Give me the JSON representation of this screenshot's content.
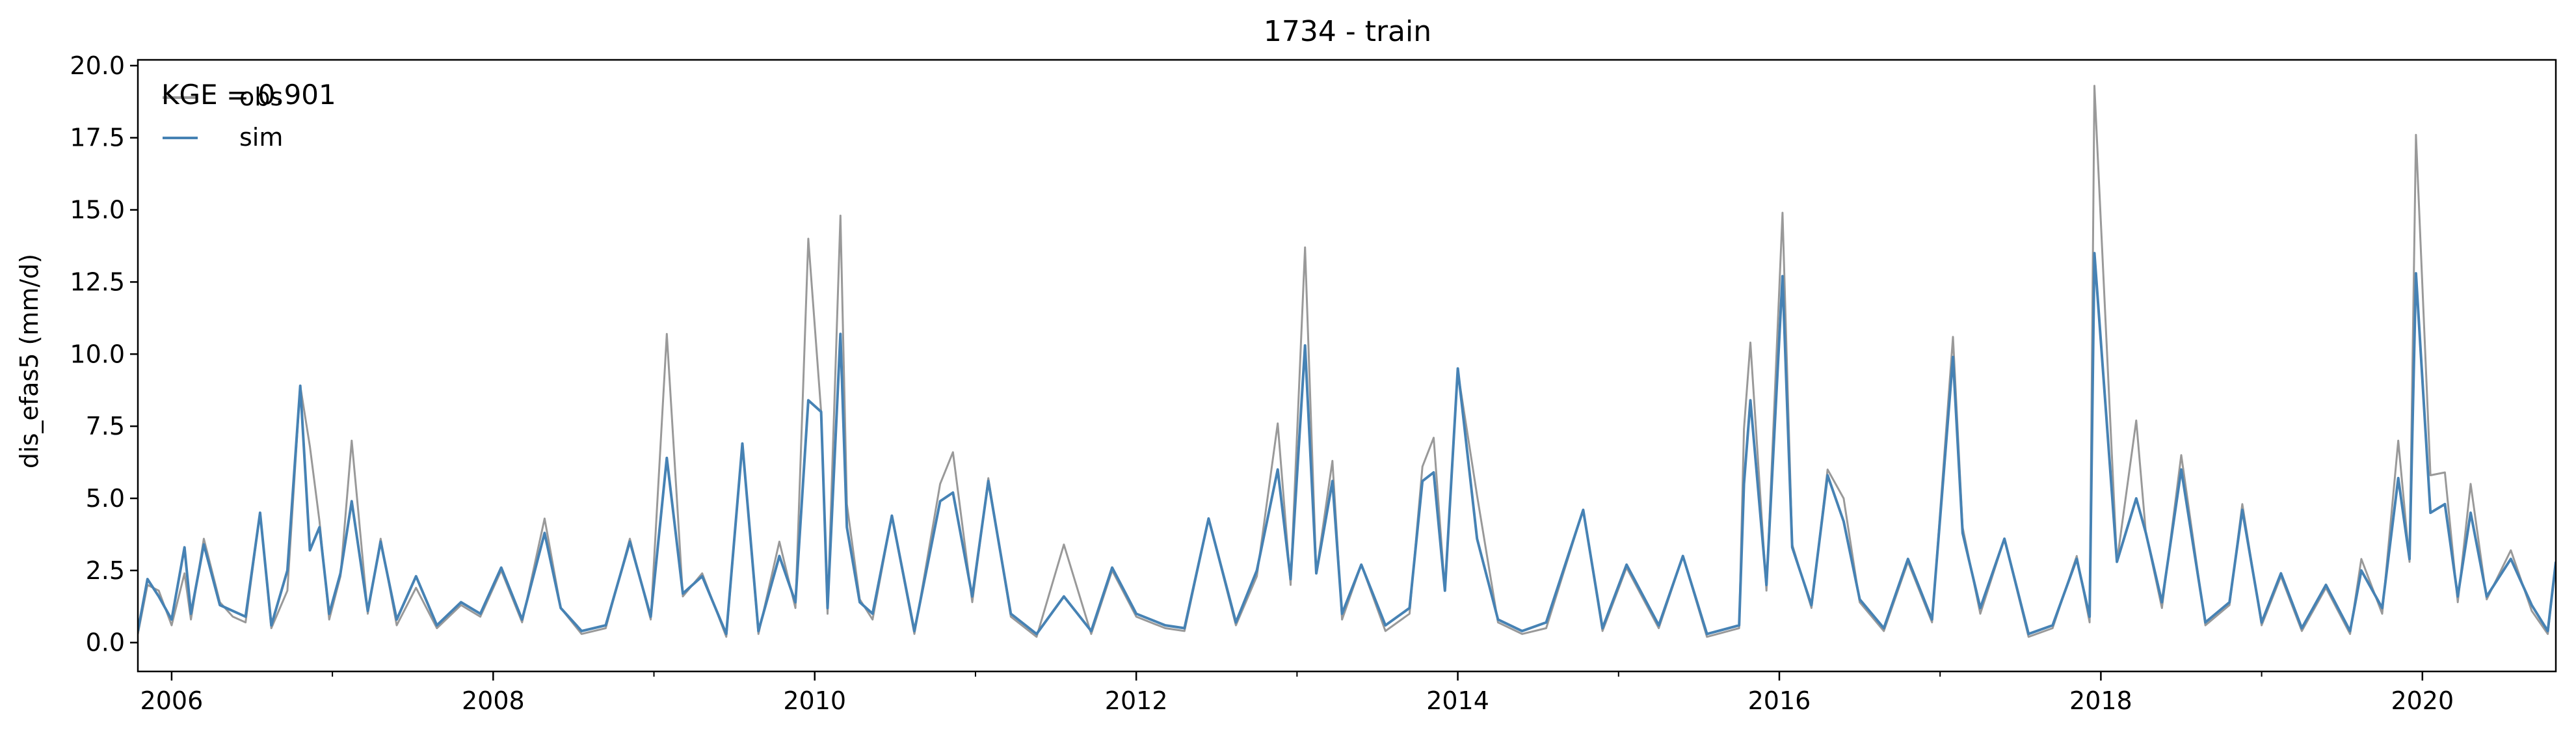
{
  "chart_data": {
    "type": "line",
    "title": "1734 - train",
    "ylabel": "dis_efas5 (mm/d)",
    "xlabel": "",
    "xlim": [
      2005.79,
      2020.83
    ],
    "ylim": [
      -1.0,
      20.2
    ],
    "grid": false,
    "legend": {
      "placement": "top-left",
      "annotation": "KGE = 0.901"
    },
    "y_ticks": [
      "0.0",
      "2.5",
      "5.0",
      "7.5",
      "10.0",
      "12.5",
      "15.0",
      "17.5",
      "20.0"
    ],
    "y_tick_values": [
      0,
      2.5,
      5,
      7.5,
      10,
      12.5,
      15,
      17.5,
      20
    ],
    "x_ticks": [
      "2006",
      "2008",
      "2010",
      "2012",
      "2014",
      "2016",
      "2018",
      "2020"
    ],
    "x_tick_values": [
      2006,
      2008,
      2010,
      2012,
      2014,
      2016,
      2018,
      2020
    ],
    "series": [
      {
        "name": "obs",
        "color": "#999999",
        "x": [
          2005.79,
          2005.85,
          2005.92,
          2006.0,
          2006.08,
          2006.12,
          2006.2,
          2006.3,
          2006.38,
          2006.46,
          2006.55,
          2006.62,
          2006.72,
          2006.8,
          2006.86,
          2006.92,
          2006.98,
          2007.05,
          2007.12,
          2007.22,
          2007.3,
          2007.4,
          2007.52,
          2007.65,
          2007.8,
          2007.92,
          2008.05,
          2008.18,
          2008.32,
          2008.42,
          2008.55,
          2008.7,
          2008.85,
          2008.98,
          2009.08,
          2009.18,
          2009.3,
          2009.45,
          2009.55,
          2009.65,
          2009.78,
          2009.88,
          2009.96,
          2010.04,
          2010.08,
          2010.16,
          2010.2,
          2010.28,
          2010.36,
          2010.48,
          2010.62,
          2010.78,
          2010.86,
          2010.98,
          2011.08,
          2011.22,
          2011.38,
          2011.55,
          2011.72,
          2011.85,
          2012.0,
          2012.18,
          2012.3,
          2012.45,
          2012.62,
          2012.75,
          2012.88,
          2012.96,
          2013.05,
          2013.12,
          2013.22,
          2013.28,
          2013.4,
          2013.55,
          2013.7,
          2013.78,
          2013.85,
          2013.92,
          2014.0,
          2014.12,
          2014.25,
          2014.4,
          2014.55,
          2014.78,
          2014.9,
          2015.05,
          2015.25,
          2015.4,
          2015.55,
          2015.75,
          2015.78,
          2015.82,
          2015.92,
          2016.02,
          2016.08,
          2016.2,
          2016.3,
          2016.4,
          2016.5,
          2016.65,
          2016.8,
          2016.95,
          2017.08,
          2017.14,
          2017.25,
          2017.4,
          2017.55,
          2017.7,
          2017.85,
          2017.93,
          2017.96,
          2018.1,
          2018.22,
          2018.28,
          2018.38,
          2018.5,
          2018.65,
          2018.8,
          2018.88,
          2019.0,
          2019.12,
          2019.25,
          2019.4,
          2019.55,
          2019.62,
          2019.75,
          2019.85,
          2019.92,
          2019.96,
          2020.05,
          2020.14,
          2020.22,
          2020.3,
          2020.4,
          2020.55,
          2020.68,
          2020.78,
          2020.83
        ],
        "values": [
          0.3,
          2.0,
          1.8,
          0.6,
          2.4,
          0.8,
          3.6,
          1.4,
          0.9,
          0.7,
          4.5,
          0.5,
          1.8,
          8.9,
          6.8,
          4.2,
          0.8,
          2.3,
          7.0,
          1.0,
          3.6,
          0.6,
          1.9,
          0.5,
          1.3,
          0.9,
          2.5,
          0.7,
          4.3,
          1.2,
          0.3,
          0.5,
          3.6,
          0.8,
          10.7,
          1.6,
          2.4,
          0.2,
          6.9,
          0.3,
          3.5,
          1.2,
          14.0,
          8.0,
          1.0,
          14.8,
          4.8,
          1.5,
          0.8,
          4.4,
          0.3,
          5.5,
          6.6,
          1.4,
          5.7,
          0.9,
          0.2,
          3.4,
          0.3,
          2.5,
          0.9,
          0.5,
          0.4,
          4.3,
          0.6,
          2.3,
          7.6,
          2.0,
          13.7,
          2.4,
          6.3,
          0.8,
          2.7,
          0.4,
          1.0,
          6.1,
          7.1,
          1.8,
          9.4,
          5.1,
          0.7,
          0.3,
          0.5,
          4.6,
          0.4,
          2.6,
          0.5,
          3.0,
          0.2,
          0.5,
          7.4,
          10.4,
          1.8,
          14.9,
          3.4,
          1.2,
          6.0,
          5.0,
          1.4,
          0.4,
          2.8,
          0.7,
          10.6,
          4.0,
          1.0,
          3.6,
          0.2,
          0.5,
          3.0,
          0.7,
          19.3,
          2.8,
          7.7,
          3.8,
          1.2,
          6.5,
          0.6,
          1.3,
          4.8,
          0.6,
          2.3,
          0.4,
          1.9,
          0.3,
          2.9,
          1.0,
          7.0,
          2.8,
          17.6,
          5.8,
          5.9,
          1.4,
          5.5,
          1.5,
          3.2,
          1.1,
          0.3,
          2.8
        ]
      },
      {
        "name": "sim",
        "color": "#4682b4",
        "x": [
          2005.79,
          2005.85,
          2005.92,
          2006.0,
          2006.08,
          2006.12,
          2006.2,
          2006.3,
          2006.38,
          2006.46,
          2006.55,
          2006.62,
          2006.72,
          2006.8,
          2006.86,
          2006.92,
          2006.98,
          2007.05,
          2007.12,
          2007.22,
          2007.3,
          2007.4,
          2007.52,
          2007.65,
          2007.8,
          2007.92,
          2008.05,
          2008.18,
          2008.32,
          2008.42,
          2008.55,
          2008.7,
          2008.85,
          2008.98,
          2009.08,
          2009.18,
          2009.3,
          2009.45,
          2009.55,
          2009.65,
          2009.78,
          2009.88,
          2009.96,
          2010.04,
          2010.08,
          2010.16,
          2010.2,
          2010.28,
          2010.36,
          2010.48,
          2010.62,
          2010.78,
          2010.86,
          2010.98,
          2011.08,
          2011.22,
          2011.38,
          2011.55,
          2011.72,
          2011.85,
          2012.0,
          2012.18,
          2012.3,
          2012.45,
          2012.62,
          2012.75,
          2012.88,
          2012.96,
          2013.05,
          2013.12,
          2013.22,
          2013.28,
          2013.4,
          2013.55,
          2013.7,
          2013.78,
          2013.85,
          2013.92,
          2014.0,
          2014.12,
          2014.25,
          2014.4,
          2014.55,
          2014.78,
          2014.9,
          2015.05,
          2015.25,
          2015.4,
          2015.55,
          2015.75,
          2015.78,
          2015.82,
          2015.92,
          2016.02,
          2016.08,
          2016.2,
          2016.3,
          2016.4,
          2016.5,
          2016.65,
          2016.8,
          2016.95,
          2017.08,
          2017.14,
          2017.25,
          2017.4,
          2017.55,
          2017.7,
          2017.85,
          2017.93,
          2017.96,
          2018.1,
          2018.22,
          2018.28,
          2018.38,
          2018.5,
          2018.65,
          2018.8,
          2018.88,
          2019.0,
          2019.12,
          2019.25,
          2019.4,
          2019.55,
          2019.62,
          2019.75,
          2019.85,
          2019.92,
          2019.96,
          2020.05,
          2020.14,
          2020.22,
          2020.3,
          2020.4,
          2020.55,
          2020.68,
          2020.78,
          2020.83
        ],
        "values": [
          0.4,
          2.2,
          1.6,
          0.8,
          3.3,
          1.0,
          3.4,
          1.3,
          1.1,
          0.9,
          4.5,
          0.6,
          2.5,
          8.9,
          3.2,
          4.0,
          1.0,
          2.4,
          4.9,
          1.1,
          3.5,
          0.8,
          2.3,
          0.6,
          1.4,
          1.0,
          2.6,
          0.8,
          3.8,
          1.2,
          0.4,
          0.6,
          3.5,
          0.9,
          6.4,
          1.7,
          2.3,
          0.3,
          6.9,
          0.4,
          3.0,
          1.4,
          8.4,
          8.0,
          1.2,
          10.7,
          4.0,
          1.4,
          1.0,
          4.4,
          0.4,
          4.9,
          5.2,
          1.6,
          5.6,
          1.0,
          0.3,
          1.6,
          0.4,
          2.6,
          1.0,
          0.6,
          0.5,
          4.3,
          0.7,
          2.5,
          6.0,
          2.2,
          10.3,
          2.4,
          5.6,
          1.0,
          2.7,
          0.6,
          1.2,
          5.6,
          5.9,
          1.8,
          9.5,
          3.6,
          0.8,
          0.4,
          0.7,
          4.6,
          0.5,
          2.7,
          0.6,
          3.0,
          0.3,
          0.6,
          5.5,
          8.4,
          2.0,
          12.7,
          3.3,
          1.3,
          5.8,
          4.2,
          1.5,
          0.5,
          2.9,
          0.8,
          9.9,
          3.8,
          1.2,
          3.6,
          0.3,
          0.6,
          2.9,
          0.9,
          13.5,
          2.8,
          5.0,
          3.8,
          1.4,
          6.0,
          0.7,
          1.4,
          4.6,
          0.7,
          2.4,
          0.5,
          2.0,
          0.4,
          2.5,
          1.2,
          5.7,
          2.9,
          12.8,
          4.5,
          4.8,
          1.6,
          4.5,
          1.6,
          2.9,
          1.3,
          0.4,
          2.8
        ]
      }
    ]
  }
}
